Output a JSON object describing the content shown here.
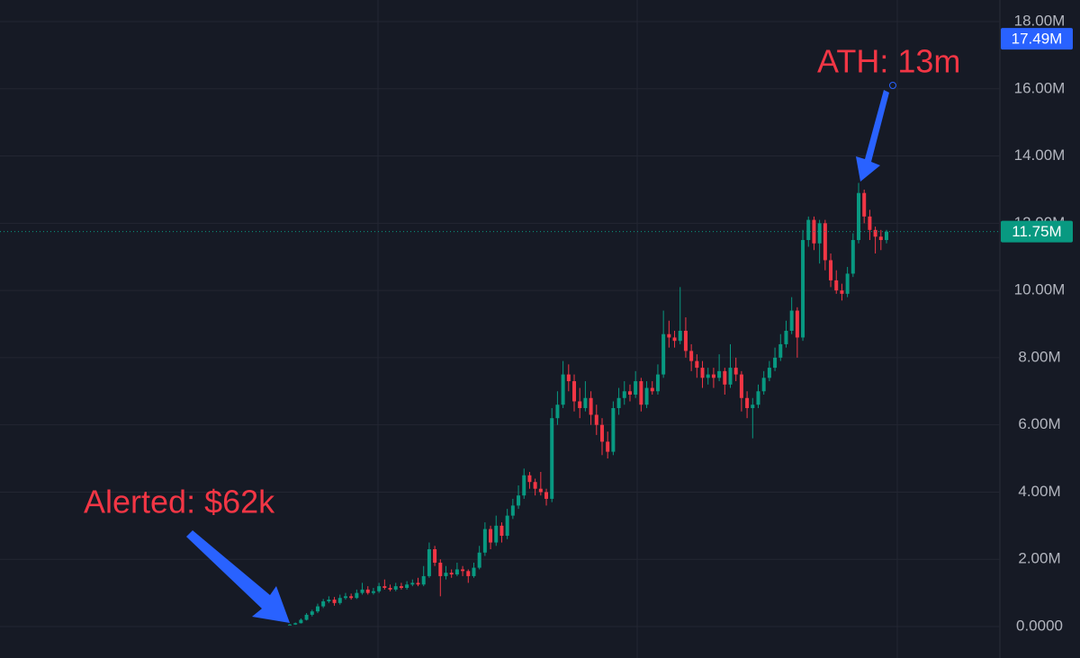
{
  "chart_data": {
    "type": "candlestick",
    "up_color": "#089981",
    "down_color": "#f23645",
    "ylim": [
      0,
      18
    ],
    "yticks": [
      {
        "value": 0,
        "label": "0.0000"
      },
      {
        "value": 2,
        "label": "2.00M"
      },
      {
        "value": 4,
        "label": "4.00M"
      },
      {
        "value": 6,
        "label": "6.00M"
      },
      {
        "value": 8,
        "label": "8.00M"
      },
      {
        "value": 10,
        "label": "10.00M"
      },
      {
        "value": 12,
        "label": "12.00M"
      },
      {
        "value": 14,
        "label": "14.00M"
      },
      {
        "value": 16,
        "label": "16.00M"
      },
      {
        "value": 18,
        "label": "18.00M"
      }
    ],
    "grid": true,
    "price_labels": [
      {
        "value": 17.49,
        "label": "17.49M",
        "color": "#2962ff"
      },
      {
        "value": 11.75,
        "label": "11.75M",
        "color": "#089981"
      }
    ],
    "annotations": [
      "ATH: 13m",
      "Alerted: $62k"
    ],
    "candles": [
      [
        0.05,
        0.08,
        0.04,
        0.06
      ],
      [
        0.06,
        0.12,
        0.05,
        0.1
      ],
      [
        0.1,
        0.24,
        0.09,
        0.2
      ],
      [
        0.2,
        0.4,
        0.18,
        0.35
      ],
      [
        0.35,
        0.5,
        0.3,
        0.45
      ],
      [
        0.45,
        0.68,
        0.4,
        0.6
      ],
      [
        0.6,
        0.82,
        0.55,
        0.75
      ],
      [
        0.75,
        0.9,
        0.7,
        0.8
      ],
      [
        0.8,
        0.88,
        0.62,
        0.7
      ],
      [
        0.7,
        0.95,
        0.65,
        0.85
      ],
      [
        0.85,
        1.0,
        0.8,
        0.9
      ],
      [
        0.9,
        0.98,
        0.8,
        0.85
      ],
      [
        0.85,
        1.1,
        0.82,
        1.0
      ],
      [
        1.0,
        1.3,
        0.95,
        1.1
      ],
      [
        1.1,
        1.2,
        0.95,
        1.0
      ],
      [
        1.0,
        1.15,
        0.95,
        1.05
      ],
      [
        1.05,
        1.3,
        1.0,
        1.2
      ],
      [
        1.2,
        1.4,
        1.1,
        1.15
      ],
      [
        1.15,
        1.25,
        1.05,
        1.1
      ],
      [
        1.1,
        1.3,
        1.05,
        1.2
      ],
      [
        1.2,
        1.3,
        1.1,
        1.15
      ],
      [
        1.15,
        1.35,
        1.1,
        1.25
      ],
      [
        1.25,
        1.4,
        1.2,
        1.3
      ],
      [
        1.3,
        1.45,
        1.2,
        1.25
      ],
      [
        1.25,
        1.8,
        1.2,
        1.5
      ],
      [
        1.5,
        2.5,
        1.45,
        2.3
      ],
      [
        2.3,
        2.4,
        1.8,
        1.9
      ],
      [
        1.9,
        2.0,
        0.9,
        1.5
      ],
      [
        1.5,
        1.8,
        1.4,
        1.6
      ],
      [
        1.6,
        1.7,
        1.45,
        1.55
      ],
      [
        1.55,
        1.9,
        1.5,
        1.7
      ],
      [
        1.7,
        1.8,
        1.5,
        1.65
      ],
      [
        1.65,
        1.7,
        1.3,
        1.5
      ],
      [
        1.5,
        1.9,
        1.45,
        1.75
      ],
      [
        1.75,
        2.4,
        1.7,
        2.2
      ],
      [
        2.2,
        3.1,
        2.1,
        2.9
      ],
      [
        2.9,
        3.0,
        2.3,
        2.5
      ],
      [
        2.5,
        3.3,
        2.4,
        3.0
      ],
      [
        3.0,
        3.1,
        2.5,
        2.7
      ],
      [
        2.7,
        3.5,
        2.6,
        3.3
      ],
      [
        3.3,
        3.8,
        3.2,
        3.6
      ],
      [
        3.6,
        4.2,
        3.5,
        3.9
      ],
      [
        3.9,
        4.7,
        3.8,
        4.5
      ],
      [
        4.5,
        4.6,
        4.1,
        4.3
      ],
      [
        4.3,
        4.4,
        3.9,
        4.1
      ],
      [
        4.1,
        4.6,
        3.9,
        4.0
      ],
      [
        4.0,
        4.1,
        3.6,
        3.8
      ],
      [
        3.8,
        6.5,
        3.7,
        6.2
      ],
      [
        6.2,
        7.0,
        6.0,
        6.6
      ],
      [
        6.6,
        7.9,
        6.5,
        7.5
      ],
      [
        7.5,
        7.8,
        7.0,
        7.3
      ],
      [
        7.3,
        7.5,
        6.4,
        6.7
      ],
      [
        6.7,
        7.1,
        6.2,
        6.5
      ],
      [
        6.5,
        7.3,
        6.4,
        6.8
      ],
      [
        6.8,
        7.0,
        6.0,
        6.3
      ],
      [
        6.3,
        6.6,
        5.7,
        6.0
      ],
      [
        6.0,
        6.2,
        5.1,
        5.5
      ],
      [
        5.5,
        5.8,
        5.0,
        5.2
      ],
      [
        5.2,
        6.7,
        5.1,
        6.5
      ],
      [
        6.5,
        7.1,
        6.3,
        6.8
      ],
      [
        6.8,
        7.3,
        6.6,
        7.0
      ],
      [
        7.0,
        7.2,
        6.7,
        6.9
      ],
      [
        6.9,
        7.6,
        6.8,
        7.3
      ],
      [
        7.3,
        7.4,
        6.4,
        6.6
      ],
      [
        6.6,
        7.3,
        6.5,
        7.1
      ],
      [
        7.1,
        7.3,
        6.9,
        7.0
      ],
      [
        7.0,
        7.8,
        6.9,
        7.5
      ],
      [
        7.5,
        9.4,
        7.4,
        8.7
      ],
      [
        8.7,
        9.1,
        8.3,
        8.6
      ],
      [
        8.6,
        8.8,
        8.3,
        8.5
      ],
      [
        8.5,
        10.1,
        8.4,
        8.8
      ],
      [
        8.8,
        9.2,
        8.0,
        8.2
      ],
      [
        8.2,
        8.4,
        7.6,
        7.9
      ],
      [
        7.9,
        8.1,
        7.4,
        7.7
      ],
      [
        7.7,
        7.9,
        7.1,
        7.4
      ],
      [
        7.4,
        7.7,
        7.2,
        7.5
      ],
      [
        7.5,
        7.7,
        7.1,
        7.4
      ],
      [
        7.4,
        8.1,
        7.3,
        7.6
      ],
      [
        7.6,
        7.7,
        6.9,
        7.2
      ],
      [
        7.2,
        8.4,
        7.1,
        7.7
      ],
      [
        7.7,
        8.0,
        7.3,
        7.5
      ],
      [
        7.5,
        7.6,
        6.4,
        6.8
      ],
      [
        6.8,
        7.0,
        6.2,
        6.5
      ],
      [
        6.5,
        6.8,
        5.6,
        6.6
      ],
      [
        6.6,
        7.2,
        6.5,
        7.0
      ],
      [
        7.0,
        7.6,
        6.9,
        7.4
      ],
      [
        7.4,
        7.9,
        7.3,
        7.7
      ],
      [
        7.7,
        8.3,
        7.6,
        8.0
      ],
      [
        8.0,
        8.7,
        7.9,
        8.4
      ],
      [
        8.4,
        9.1,
        8.3,
        8.8
      ],
      [
        8.8,
        9.8,
        8.7,
        9.4
      ],
      [
        9.4,
        9.5,
        8.0,
        8.6
      ],
      [
        8.6,
        11.8,
        8.5,
        11.5
      ],
      [
        11.5,
        12.2,
        11.3,
        12.1
      ],
      [
        12.1,
        12.2,
        11.2,
        11.4
      ],
      [
        11.4,
        12.1,
        10.8,
        12.0
      ],
      [
        12.0,
        12.1,
        10.6,
        10.9
      ],
      [
        10.9,
        11.1,
        10.1,
        10.3
      ],
      [
        10.3,
        10.6,
        9.9,
        10.0
      ],
      [
        10.0,
        10.2,
        9.7,
        9.9
      ],
      [
        9.9,
        10.7,
        9.8,
        10.5
      ],
      [
        10.5,
        11.7,
        10.4,
        11.5
      ],
      [
        11.5,
        13.2,
        11.4,
        12.9
      ],
      [
        12.9,
        13.0,
        12.0,
        12.2
      ],
      [
        12.2,
        12.4,
        11.5,
        11.8
      ],
      [
        11.8,
        11.9,
        11.1,
        11.6
      ],
      [
        11.6,
        11.8,
        11.2,
        11.5
      ],
      [
        11.5,
        11.8,
        11.4,
        11.75
      ]
    ]
  }
}
